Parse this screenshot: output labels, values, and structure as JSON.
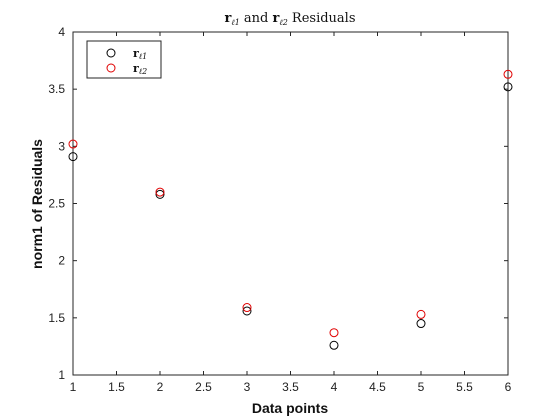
{
  "chart_data": {
    "type": "scatter",
    "title": "r_{ℓ1} and r_{ℓ2} Residuals",
    "xlabel": "Data points",
    "ylabel": "norm1 of Residuals",
    "xlim": [
      1,
      6
    ],
    "ylim": [
      1,
      4
    ],
    "grid": false,
    "legend_position": "top-left",
    "x_ticks": [
      "1",
      "1.5",
      "2",
      "2.5",
      "3",
      "3.5",
      "4",
      "4.5",
      "5",
      "5.5",
      "6"
    ],
    "y_ticks": [
      "1",
      "1.5",
      "2",
      "2.5",
      "3",
      "3.5",
      "4"
    ],
    "x": [
      1,
      2,
      3,
      4,
      5,
      6
    ],
    "series": [
      {
        "name": "r_{ℓ1}",
        "color": "#000000",
        "marker": "circle-open",
        "values": [
          2.91,
          2.58,
          1.56,
          1.26,
          1.45,
          3.52
        ]
      },
      {
        "name": "r_{ℓ2}",
        "color": "#e00000",
        "marker": "circle-open",
        "values": [
          3.02,
          2.6,
          1.59,
          1.37,
          1.53,
          3.63
        ]
      }
    ]
  }
}
